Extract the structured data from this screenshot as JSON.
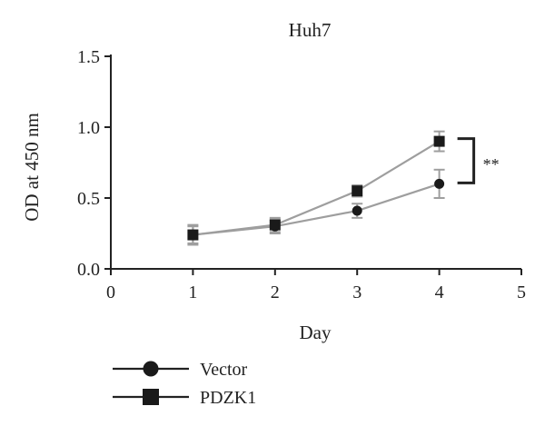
{
  "chart_data": {
    "type": "line",
    "title": "Huh7",
    "xlabel": "Day",
    "ylabel": "OD at 450 nm",
    "xlim": [
      0,
      5
    ],
    "ylim": [
      0.0,
      1.5
    ],
    "xticks": [
      0,
      1,
      2,
      3,
      4,
      5
    ],
    "yticks": [
      "0.0",
      "0.5",
      "1.0",
      "1.5"
    ],
    "x": [
      1,
      2,
      3,
      4
    ],
    "series": [
      {
        "name": "Vector",
        "marker": "circle",
        "values": [
          0.24,
          0.3,
          0.41,
          0.6
        ],
        "errors": [
          0.07,
          0.05,
          0.05,
          0.1
        ]
      },
      {
        "name": "PDZK1",
        "marker": "square",
        "values": [
          0.24,
          0.31,
          0.55,
          0.9
        ],
        "errors": [
          0.06,
          0.05,
          0.04,
          0.07
        ]
      }
    ],
    "annotations": [
      {
        "text": "**",
        "between": [
          "Vector",
          "PDZK1"
        ],
        "at_x": 4
      }
    ],
    "legend_position": "bottom-left",
    "grid": false,
    "colors": {
      "line": "#9e9e9e",
      "marker": "#1a1a1a",
      "axis": "#222222",
      "errorbar": "#9e9e9e"
    }
  }
}
